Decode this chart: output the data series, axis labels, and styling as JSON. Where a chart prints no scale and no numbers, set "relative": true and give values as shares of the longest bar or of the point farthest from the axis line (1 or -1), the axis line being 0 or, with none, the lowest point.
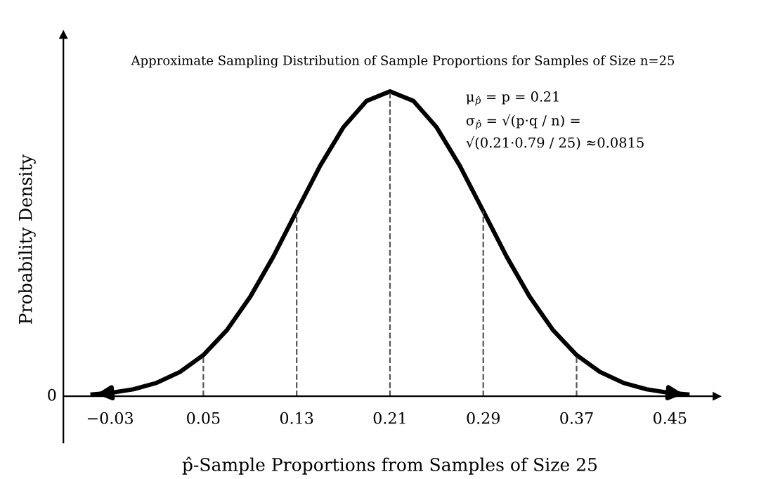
{
  "chart_data": {
    "type": "line",
    "relative": true,
    "title": "Approximate Sampling Distribution of Sample Proportions for Samples of Size n=25",
    "xlabel": "p̂-Sample Proportions from Samples of Size 25",
    "ylabel": "Probability Density",
    "annotations": [
      "0",
      "μ$_{p̂}$ = p = 0.21",
      "σ$_{p̂}$ = √(p·q / n) =",
      "√(0.21·0.79 / 25) ≈0.0815"
    ],
    "xlim": [
      -0.07,
      0.49
    ],
    "xticks": [
      -0.03,
      0.05,
      0.13,
      0.21,
      0.29,
      0.37,
      0.45
    ],
    "x": [
      -0.045,
      -0.03,
      -0.01,
      0.01,
      0.03,
      0.05,
      0.07,
      0.09,
      0.11,
      0.13,
      0.15,
      0.17,
      0.19,
      0.21,
      0.23,
      0.25,
      0.27,
      0.29,
      0.31,
      0.33,
      0.35,
      0.37,
      0.39,
      0.41,
      0.43,
      0.45,
      0.465
    ],
    "series": [
      {
        "color": "#000000",
        "values": [
          0.006,
          0.011,
          0.023,
          0.044,
          0.08,
          0.135,
          0.216,
          0.325,
          0.458,
          0.607,
          0.755,
          0.882,
          0.969,
          1,
          0.969,
          0.882,
          0.755,
          0.607,
          0.458,
          0.325,
          0.216,
          0.135,
          0.08,
          0.044,
          0.023,
          0.011,
          0.006
        ]
      }
    ],
    "ref_lines": [
      {
        "axis": "x",
        "value": 0.05,
        "color": "#555555",
        "line_style": "dashed"
      },
      {
        "axis": "x",
        "value": 0.13,
        "color": "#555555",
        "line_style": "dashed"
      },
      {
        "axis": "x",
        "value": 0.21,
        "color": "#555555",
        "line_style": "dashed"
      },
      {
        "axis": "x",
        "value": 0.29,
        "color": "#555555",
        "line_style": "dashed"
      },
      {
        "axis": "x",
        "value": 0.37,
        "color": "#555555",
        "line_style": "dashed"
      }
    ],
    "grid": false,
    "marker": "none",
    "line_style": "solid",
    "legend": false
  }
}
